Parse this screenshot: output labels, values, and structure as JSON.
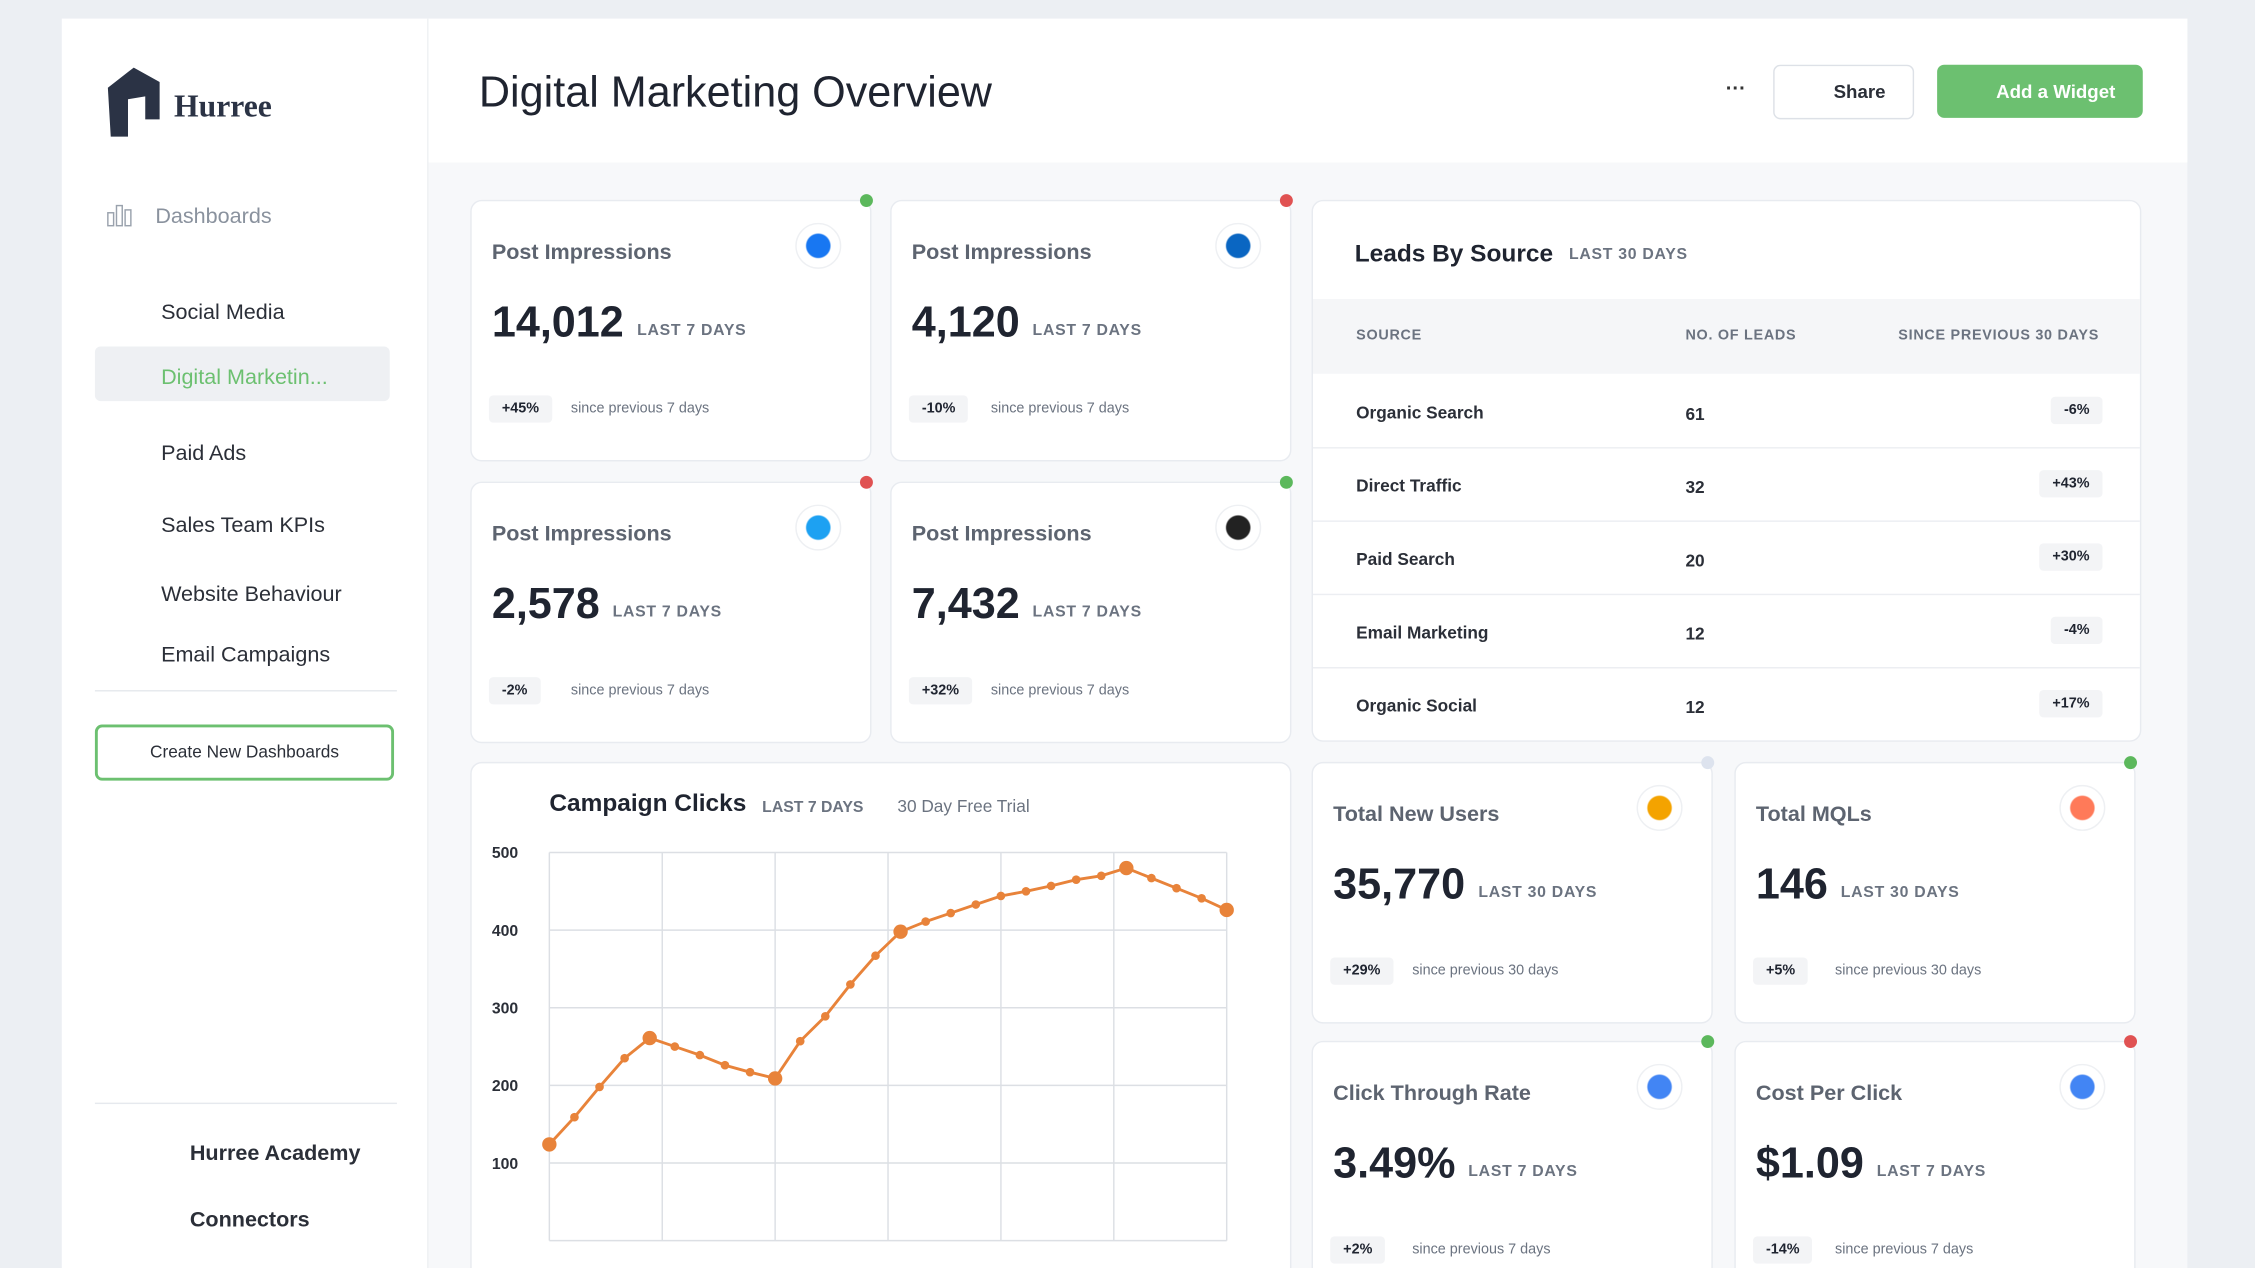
{
  "sidebar": {
    "brand": "Hurree",
    "section": "Dashboards",
    "items": [
      "Social Media",
      "Digital Marketin...",
      "Paid Ads",
      "Sales Team KPIs",
      "Website Behaviour",
      "Email Campaigns"
    ],
    "active": 1,
    "button": "Create New Dashboards",
    "footer": [
      "Hurree Academy",
      "Connectors"
    ]
  },
  "header": {
    "title": "Digital Marketing Overview",
    "more": "···",
    "share": "Share",
    "add": "Add a Widget"
  },
  "cards": [
    {
      "label": "Post Impressions",
      "value": "14,012",
      "period": "LAST 7 DAYS",
      "change": "+45%",
      "since": "since previous 7 days",
      "status": "#5cb85c",
      "icon": "#1877f2"
    },
    {
      "label": "Post Impressions",
      "value": "4,120",
      "period": "LAST 7 DAYS",
      "change": "-10%",
      "since": "since previous 7 days",
      "status": "#e05252",
      "icon": "#0a66c2"
    },
    {
      "label": "Post Impressions",
      "value": "2,578",
      "period": "LAST 7 DAYS",
      "change": "-2%",
      "since": "since previous 7 days",
      "status": "#e05252",
      "icon": "#1da1f2"
    },
    {
      "label": "Post Impressions",
      "value": "7,432",
      "period": "LAST 7 DAYS",
      "change": "+32%",
      "since": "since previous 7 days",
      "status": "#5cb85c",
      "icon": "#222222"
    },
    {
      "label": "Total New Users",
      "value": "35,770",
      "period": "LAST 30 DAYS",
      "change": "+29%",
      "since": "since previous 30 days",
      "status": "#dde3ee",
      "icon": "#f4a300"
    },
    {
      "label": "Total MQLs",
      "value": "146",
      "period": "LAST 30 DAYS",
      "change": "+5%",
      "since": "since previous 30 days",
      "status": "#5cb85c",
      "icon": "#ff7a59"
    },
    {
      "label": "Click Through Rate",
      "value": "3.49%",
      "period": "LAST 7 DAYS",
      "change": "+2%",
      "since": "since previous 7 days",
      "status": "#5cb85c",
      "icon": "#4285f4"
    },
    {
      "label": "Cost Per Click",
      "value": "$1.09",
      "period": "LAST 7 DAYS",
      "change": "-14%",
      "since": "since previous 7 days",
      "status": "#e05252",
      "icon": "#4285f4"
    }
  ],
  "leads": {
    "title": "Leads By Source",
    "period": "LAST 30 DAYS",
    "columns": [
      "SOURCE",
      "NO. OF LEADS",
      "SINCE PREVIOUS 30 DAYS"
    ],
    "rows": [
      [
        "Organic Search",
        61,
        "-6%"
      ],
      [
        "Direct Traffic",
        32,
        "+43%"
      ],
      [
        "Paid Search",
        20,
        "+30%"
      ],
      [
        "Email Marketing",
        12,
        "-4%"
      ],
      [
        "Organic Social",
        12,
        "+17%"
      ]
    ]
  },
  "chart_data": {
    "type": "line",
    "title": "Campaign Clicks",
    "subtitle": "LAST 7 DAYS",
    "annotation": "30 Day Free Trial",
    "color": "#e8833a",
    "values": [
      124,
      159,
      198,
      235,
      261,
      250,
      239,
      226,
      217,
      209,
      257,
      289,
      330,
      367,
      398,
      411,
      422,
      433,
      444,
      450,
      457,
      465,
      470,
      480,
      467,
      454,
      441,
      426
    ],
    "ylim": [
      0,
      500
    ],
    "yticks": [
      100,
      200,
      300,
      400,
      500
    ],
    "grid": true
  }
}
